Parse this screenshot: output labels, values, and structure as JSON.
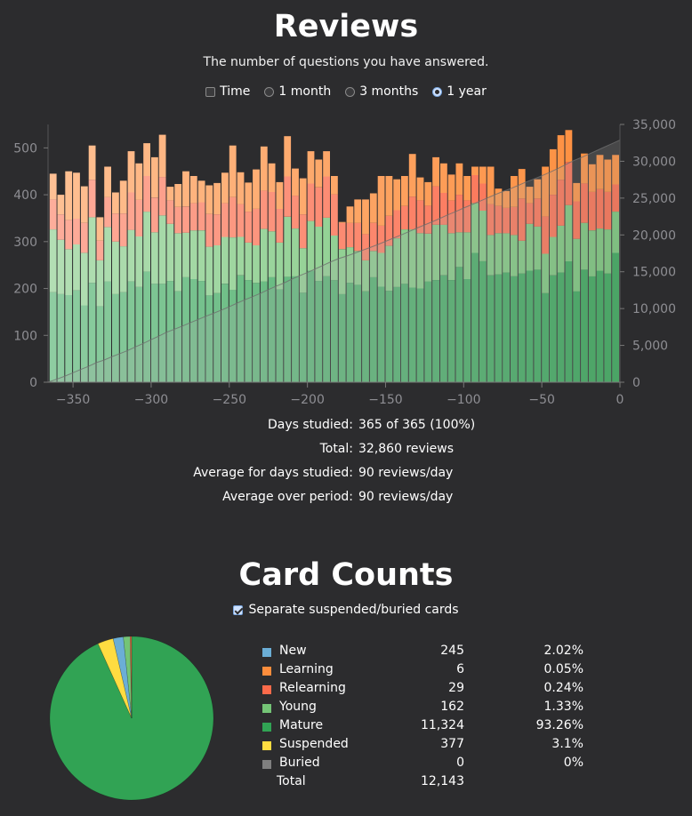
{
  "reviews": {
    "title": "Reviews",
    "subtitle": "The number of questions you have answered.",
    "time_label": "Time",
    "ranges": [
      {
        "label": "1 month",
        "selected": false
      },
      {
        "label": "3 months",
        "selected": false
      },
      {
        "label": "1 year",
        "selected": true
      }
    ],
    "stats": [
      {
        "label": "Days studied:",
        "value": "365 of 365 (100%)"
      },
      {
        "label": "Total:",
        "value": "32,860 reviews"
      },
      {
        "label": "Average for days studied:",
        "value": "90 reviews/day"
      },
      {
        "label": "Average over period:",
        "value": "90 reviews/day"
      }
    ]
  },
  "card_counts": {
    "title": "Card Counts",
    "separate_label": "Separate suspended/buried cards",
    "separate_checked": true,
    "rows": [
      {
        "name": "New",
        "count": "245",
        "percent": "2.02%",
        "color": "#6baed6"
      },
      {
        "name": "Learning",
        "count": "6",
        "percent": "0.05%",
        "color": "#fd8d3c"
      },
      {
        "name": "Relearning",
        "count": "29",
        "percent": "0.24%",
        "color": "#fb6a4a"
      },
      {
        "name": "Young",
        "count": "162",
        "percent": "1.33%",
        "color": "#74c476"
      },
      {
        "name": "Mature",
        "count": "11,324",
        "percent": "93.26%",
        "color": "#31a354"
      },
      {
        "name": "Suspended",
        "count": "377",
        "percent": "3.1%",
        "color": "#ffdc41"
      },
      {
        "name": "Buried",
        "count": "0",
        "percent": "0%",
        "color": "#7f7f7f"
      }
    ],
    "total_label": "Total",
    "total_count": "12,143"
  },
  "chart_data": [
    {
      "type": "bar",
      "stacked": true,
      "x_ticks": [
        "−350",
        "−300",
        "−250",
        "−200",
        "−150",
        "−100",
        "−50",
        "0"
      ],
      "y_ticks_left": [
        "0",
        "100",
        "200",
        "300",
        "400",
        "500"
      ],
      "y_ticks_right": [
        "0",
        "5,000",
        "10,000",
        "15,000",
        "20,000",
        "25,000",
        "30,000",
        "35,000"
      ],
      "xlim": [
        -366,
        0
      ],
      "ylim": [
        0,
        550
      ],
      "y2lim": [
        0,
        35000
      ],
      "bin_days": 5,
      "bin_starts": [
        -365,
        -360,
        -355,
        -350,
        -345,
        -340,
        -335,
        -330,
        -325,
        -320,
        -315,
        -310,
        -305,
        -300,
        -295,
        -290,
        -285,
        -280,
        -275,
        -270,
        -265,
        -260,
        -255,
        -250,
        -245,
        -240,
        -235,
        -230,
        -225,
        -220,
        -215,
        -210,
        -205,
        -200,
        -195,
        -190,
        -185,
        -180,
        -175,
        -170,
        -165,
        -160,
        -155,
        -150,
        -145,
        -140,
        -135,
        -130,
        -125,
        -120,
        -115,
        -110,
        -105,
        -100,
        -95,
        -90,
        -85,
        -80,
        -75,
        -70,
        -65,
        -60,
        -55,
        -50,
        -45,
        -40,
        -35,
        -30,
        -25,
        -20,
        -15,
        -10,
        -5
      ],
      "totals": [
        445,
        400,
        450,
        447,
        418,
        505,
        352,
        460,
        405,
        430,
        493,
        467,
        510,
        480,
        528,
        417,
        423,
        450,
        440,
        430,
        420,
        425,
        447,
        505,
        448,
        426,
        454,
        503,
        467,
        427,
        525,
        456,
        435,
        493,
        475,
        493,
        440,
        342,
        375,
        390,
        390,
        403,
        440,
        440,
        433,
        440,
        487,
        437,
        427,
        480,
        467,
        443,
        467,
        440,
        460,
        460,
        460,
        413,
        408,
        440,
        455,
        417,
        433,
        460,
        497,
        527,
        538,
        425,
        488,
        465,
        485,
        475,
        485
      ],
      "series": [
        {
          "name": "Mature",
          "color": "#31a354",
          "values": [
            192,
            188,
            186,
            196,
            164,
            212,
            162,
            215,
            188,
            192,
            215,
            203,
            236,
            210,
            210,
            216,
            194,
            224,
            220,
            216,
            185,
            190,
            210,
            197,
            228,
            218,
            212,
            215,
            224,
            198,
            225,
            226,
            191,
            238,
            216,
            226,
            218,
            188,
            212,
            208,
            194,
            224,
            204,
            195,
            203,
            210,
            202,
            200,
            215,
            218,
            228,
            218,
            246,
            220,
            276,
            258,
            228,
            230,
            234,
            226,
            232,
            238,
            240,
            190,
            228,
            234,
            258,
            194,
            240,
            226,
            238,
            232,
            276
          ]
        },
        {
          "name": "Young",
          "color": "#74c476",
          "values": [
            134,
            116,
            98,
            98,
            112,
            140,
            98,
            116,
            112,
            98,
            110,
            108,
            128,
            110,
            146,
            122,
            124,
            95,
            104,
            108,
            104,
            102,
            100,
            112,
            82,
            80,
            80,
            112,
            98,
            100,
            128,
            102,
            95,
            106,
            116,
            125,
            95,
            96,
            76,
            72,
            66,
            56,
            72,
            96,
            104,
            116,
            124,
            118,
            102,
            118,
            108,
            100,
            74,
            100,
            106,
            108,
            86,
            88,
            84,
            88,
            70,
            100,
            92,
            84,
            82,
            100,
            120,
            112,
            100,
            98,
            90,
            94,
            88
          ]
        },
        {
          "name": "Relearning",
          "color": "#fb6a4a",
          "values": [
            64,
            54,
            62,
            55,
            64,
            80,
            42,
            64,
            60,
            70,
            80,
            78,
            76,
            74,
            82,
            50,
            56,
            56,
            58,
            60,
            70,
            66,
            72,
            86,
            70,
            66,
            78,
            82,
            84,
            72,
            86,
            70,
            72,
            80,
            84,
            88,
            88,
            56,
            52,
            60,
            56,
            60,
            58,
            64,
            60,
            50,
            70,
            70,
            60,
            82,
            68,
            70,
            80,
            68,
            60,
            58,
            66,
            58,
            54,
            60,
            90,
            44,
            60,
            80,
            90,
            98,
            92,
            80,
            84,
            82,
            84,
            80,
            58
          ]
        },
        {
          "name": "Learning",
          "color": "#fd8d3c",
          "values": [
            55,
            42,
            104,
            98,
            78,
            73,
            50,
            65,
            45,
            70,
            88,
            78,
            70,
            86,
            90,
            29,
            49,
            75,
            58,
            46,
            61,
            67,
            65,
            110,
            68,
            62,
            84,
            94,
            61,
            57,
            86,
            58,
            77,
            69,
            59,
            54,
            39,
            2,
            35,
            50,
            74,
            63,
            106,
            85,
            66,
            64,
            91,
            49,
            50,
            62,
            63,
            55,
            67,
            52,
            18,
            36,
            80,
            37,
            36,
            66,
            63,
            35,
            41,
            106,
            97,
            95,
            68,
            39,
            64,
            59,
            73,
            69,
            63
          ]
        }
      ]
    },
    {
      "type": "pie",
      "slices": [
        {
          "name": "Mature",
          "value": 11324,
          "color": "#31a354"
        },
        {
          "name": "Suspended",
          "value": 377,
          "color": "#ffdc41"
        },
        {
          "name": "New",
          "value": 245,
          "color": "#6baed6"
        },
        {
          "name": "Young",
          "value": 162,
          "color": "#74c476"
        },
        {
          "name": "Relearning",
          "value": 29,
          "color": "#fb6a4a"
        },
        {
          "name": "Learning",
          "value": 6,
          "color": "#fd8d3c"
        },
        {
          "name": "Buried",
          "value": 0,
          "color": "#7f7f7f"
        }
      ]
    }
  ]
}
